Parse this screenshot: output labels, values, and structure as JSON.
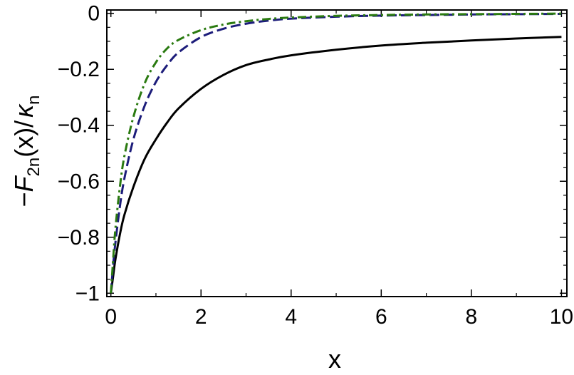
{
  "chart_data": {
    "type": "line",
    "title": "",
    "xlabel": "x",
    "ylabel": {
      "prefix": "−",
      "f": "F",
      "f_sub": "2n",
      "arg": "(x)/",
      "k": "κ",
      "k_sub": "n"
    },
    "xlim": [
      0,
      10
    ],
    "ylim": [
      -1,
      0
    ],
    "x_ticks": [
      {
        "value": 0,
        "label": "0"
      },
      {
        "value": 2,
        "label": "2"
      },
      {
        "value": 4,
        "label": "4"
      },
      {
        "value": 6,
        "label": "6"
      },
      {
        "value": 8,
        "label": "8"
      },
      {
        "value": 10,
        "label": "10"
      }
    ],
    "y_ticks": [
      {
        "value": -1,
        "label": "−1"
      },
      {
        "value": -0.8,
        "label": "−0.8"
      },
      {
        "value": -0.6,
        "label": "−0.6"
      },
      {
        "value": -0.4,
        "label": "−0.4"
      },
      {
        "value": -0.2,
        "label": "−0.2"
      },
      {
        "value": 0,
        "label": "0"
      }
    ],
    "grid": false,
    "legend": "none",
    "series": [
      {
        "color": "#000000",
        "style": "solid",
        "x": [
          0,
          0.05,
          0.1,
          0.2,
          0.3,
          0.5,
          0.75,
          1,
          1.25,
          1.5,
          2,
          2.5,
          3,
          3.5,
          4,
          5,
          6,
          7,
          8,
          9,
          10
        ],
        "y": [
          -1,
          -0.94,
          -0.88,
          -0.79,
          -0.72,
          -0.62,
          -0.52,
          -0.45,
          -0.39,
          -0.34,
          -0.27,
          -0.22,
          -0.185,
          -0.165,
          -0.15,
          -0.13,
          -0.115,
          -0.105,
          -0.097,
          -0.09,
          -0.084
        ]
      },
      {
        "color": "#1c1c7a",
        "style": "dashed",
        "x": [
          0,
          0.05,
          0.1,
          0.2,
          0.3,
          0.5,
          0.75,
          1,
          1.25,
          1.5,
          2,
          2.5,
          3,
          3.5,
          4,
          5,
          6,
          7,
          8,
          9,
          10
        ],
        "y": [
          -1,
          -0.9,
          -0.82,
          -0.69,
          -0.59,
          -0.45,
          -0.33,
          -0.245,
          -0.185,
          -0.14,
          -0.085,
          -0.055,
          -0.037,
          -0.026,
          -0.019,
          -0.012,
          -0.008,
          -0.006,
          -0.004,
          -0.003,
          -0.002
        ]
      },
      {
        "color": "#2a7a10",
        "style": "dashdot",
        "x": [
          0,
          0.05,
          0.1,
          0.2,
          0.3,
          0.5,
          0.75,
          1,
          1.25,
          1.5,
          2,
          2.5,
          3,
          3.5,
          4,
          5,
          6,
          7,
          8,
          9,
          10
        ],
        "y": [
          -1,
          -0.88,
          -0.77,
          -0.62,
          -0.51,
          -0.37,
          -0.25,
          -0.175,
          -0.125,
          -0.095,
          -0.06,
          -0.04,
          -0.028,
          -0.02,
          -0.015,
          -0.009,
          -0.006,
          -0.004,
          -0.003,
          -0.002,
          -0.001
        ]
      }
    ]
  }
}
